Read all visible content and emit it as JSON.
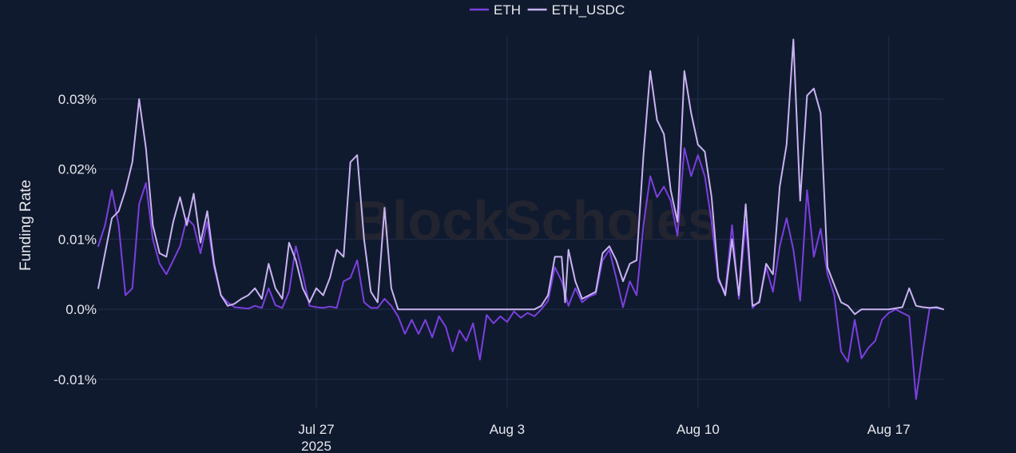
{
  "colors": {
    "background": "#101a2e",
    "grid": "#1f2d4a",
    "text": "#e6e8ee",
    "watermark": "#2a2a33",
    "eth": "#7b3fe0",
    "eth_usdc": "#c9b3f2"
  },
  "watermark": "BlockScholes",
  "chart_data": {
    "type": "line",
    "title": "",
    "xlabel": "",
    "ylabel": "Funding Rate",
    "x_range": [
      "2025-07-19",
      "2025-08-19"
    ],
    "ylim": [
      -0.014,
      0.039
    ],
    "y_ticks": [
      -0.01,
      0.0,
      0.01,
      0.02,
      0.03
    ],
    "y_tick_labels": [
      "-0.01%",
      "0.0%",
      "0.01%",
      "0.02%",
      "0.03%"
    ],
    "x_ticks": [
      "2025-07-27",
      "2025-08-03",
      "2025-08-10",
      "2025-08-17"
    ],
    "x_tick_labels": [
      "Jul 27",
      "Aug 3",
      "Aug 10",
      "Aug 17"
    ],
    "x_tick_sublabel": "2025",
    "grid": true,
    "legend_position": "top-center",
    "series": [
      {
        "name": "ETH",
        "color": "#7b3fe0",
        "points": [
          [
            "2025-07-19 00:00",
            0.009
          ],
          [
            "2025-07-19 06:00",
            0.012
          ],
          [
            "2025-07-19 12:00",
            0.017
          ],
          [
            "2025-07-19 18:00",
            0.012
          ],
          [
            "2025-07-20 00:00",
            0.002
          ],
          [
            "2025-07-20 06:00",
            0.003
          ],
          [
            "2025-07-20 12:00",
            0.015
          ],
          [
            "2025-07-20 18:00",
            0.018
          ],
          [
            "2025-07-21 00:00",
            0.01
          ],
          [
            "2025-07-21 06:00",
            0.0065
          ],
          [
            "2025-07-21 12:00",
            0.005
          ],
          [
            "2025-07-21 18:00",
            0.007
          ],
          [
            "2025-07-22 00:00",
            0.009
          ],
          [
            "2025-07-22 06:00",
            0.013
          ],
          [
            "2025-07-22 12:00",
            0.012
          ],
          [
            "2025-07-22 18:00",
            0.008
          ],
          [
            "2025-07-23 00:00",
            0.0125
          ],
          [
            "2025-07-23 06:00",
            0.006
          ],
          [
            "2025-07-23 12:00",
            0.002
          ],
          [
            "2025-07-23 18:00",
            0.001
          ],
          [
            "2025-07-24 00:00",
            0.0003
          ],
          [
            "2025-07-24 06:00",
            0.0002
          ],
          [
            "2025-07-24 12:00",
            0.0001
          ],
          [
            "2025-07-24 18:00",
            0.0005
          ],
          [
            "2025-07-25 00:00",
            0.0002
          ],
          [
            "2025-07-25 06:00",
            0.003
          ],
          [
            "2025-07-25 12:00",
            0.0006
          ],
          [
            "2025-07-25 18:00",
            0.0002
          ],
          [
            "2025-07-26 00:00",
            0.0025
          ],
          [
            "2025-07-26 06:00",
            0.009
          ],
          [
            "2025-07-26 12:00",
            0.005
          ],
          [
            "2025-07-26 18:00",
            0.0005
          ],
          [
            "2025-07-27 00:00",
            0.0003
          ],
          [
            "2025-07-27 06:00",
            0.0002
          ],
          [
            "2025-07-27 12:00",
            0.0004
          ],
          [
            "2025-07-27 18:00",
            0.0002
          ],
          [
            "2025-07-28 00:00",
            0.004
          ],
          [
            "2025-07-28 06:00",
            0.0045
          ],
          [
            "2025-07-28 12:00",
            0.007
          ],
          [
            "2025-07-28 18:00",
            0.001
          ],
          [
            "2025-07-29 00:00",
            0.0002
          ],
          [
            "2025-07-29 06:00",
            0.0002
          ],
          [
            "2025-07-29 12:00",
            0.0015
          ],
          [
            "2025-07-29 18:00",
            0.0005
          ],
          [
            "2025-07-30 00:00",
            -0.001
          ],
          [
            "2025-07-30 06:00",
            -0.0035
          ],
          [
            "2025-07-30 12:00",
            -0.0015
          ],
          [
            "2025-07-30 18:00",
            -0.0035
          ],
          [
            "2025-07-31 00:00",
            -0.0015
          ],
          [
            "2025-07-31 06:00",
            -0.004
          ],
          [
            "2025-07-31 12:00",
            -0.001
          ],
          [
            "2025-07-31 18:00",
            -0.0025
          ],
          [
            "2025-08-01 00:00",
            -0.006
          ],
          [
            "2025-08-01 06:00",
            -0.003
          ],
          [
            "2025-08-01 12:00",
            -0.0045
          ],
          [
            "2025-08-01 18:00",
            -0.002
          ],
          [
            "2025-08-02 00:00",
            -0.0072
          ],
          [
            "2025-08-02 06:00",
            -0.0008
          ],
          [
            "2025-08-02 12:00",
            -0.002
          ],
          [
            "2025-08-02 18:00",
            -0.001
          ],
          [
            "2025-08-03 00:00",
            -0.0018
          ],
          [
            "2025-08-03 06:00",
            -0.0003
          ],
          [
            "2025-08-03 12:00",
            -0.0012
          ],
          [
            "2025-08-03 18:00",
            -0.0005
          ],
          [
            "2025-08-04 00:00",
            -0.001
          ],
          [
            "2025-08-04 06:00",
            0.0
          ],
          [
            "2025-08-04 12:00",
            0.0012
          ],
          [
            "2025-08-04 18:00",
            0.006
          ],
          [
            "2025-08-05 00:00",
            0.004
          ],
          [
            "2025-08-05 06:00",
            0.0005
          ],
          [
            "2025-08-05 12:00",
            0.003
          ],
          [
            "2025-08-05 18:00",
            0.001
          ],
          [
            "2025-08-06 00:00",
            0.0018
          ],
          [
            "2025-08-06 06:00",
            0.0022
          ],
          [
            "2025-08-06 12:00",
            0.007
          ],
          [
            "2025-08-06 18:00",
            0.0085
          ],
          [
            "2025-08-07 00:00",
            0.0045
          ],
          [
            "2025-08-07 06:00",
            0.0003
          ],
          [
            "2025-08-07 12:00",
            0.004
          ],
          [
            "2025-08-07 18:00",
            0.002
          ],
          [
            "2025-08-08 00:00",
            0.012
          ],
          [
            "2025-08-08 06:00",
            0.019
          ],
          [
            "2025-08-08 12:00",
            0.016
          ],
          [
            "2025-08-08 18:00",
            0.0175
          ],
          [
            "2025-08-09 00:00",
            0.0155
          ],
          [
            "2025-08-09 06:00",
            0.0105
          ],
          [
            "2025-08-09 12:00",
            0.023
          ],
          [
            "2025-08-09 18:00",
            0.019
          ],
          [
            "2025-08-10 00:00",
            0.022
          ],
          [
            "2025-08-10 06:00",
            0.019
          ],
          [
            "2025-08-10 12:00",
            0.0125
          ],
          [
            "2025-08-10 18:00",
            0.004
          ],
          [
            "2025-08-11 00:00",
            0.0025
          ],
          [
            "2025-08-11 06:00",
            0.012
          ],
          [
            "2025-08-11 12:00",
            0.0015
          ],
          [
            "2025-08-11 18:00",
            0.0125
          ],
          [
            "2025-08-12 00:00",
            0.0002
          ],
          [
            "2025-08-12 06:00",
            0.0012
          ],
          [
            "2025-08-12 12:00",
            0.006
          ],
          [
            "2025-08-12 18:00",
            0.0025
          ],
          [
            "2025-08-13 00:00",
            0.009
          ],
          [
            "2025-08-13 06:00",
            0.013
          ],
          [
            "2025-08-13 12:00",
            0.0085
          ],
          [
            "2025-08-13 18:00",
            0.0012
          ],
          [
            "2025-08-14 00:00",
            0.017
          ],
          [
            "2025-08-14 06:00",
            0.0075
          ],
          [
            "2025-08-14 12:00",
            0.0115
          ],
          [
            "2025-08-14 18:00",
            0.005
          ],
          [
            "2025-08-15 00:00",
            0.002
          ],
          [
            "2025-08-15 06:00",
            -0.006
          ],
          [
            "2025-08-15 12:00",
            -0.0075
          ],
          [
            "2025-08-15 18:00",
            -0.0015
          ],
          [
            "2025-08-16 00:00",
            -0.007
          ],
          [
            "2025-08-16 06:00",
            -0.0055
          ],
          [
            "2025-08-16 12:00",
            -0.0045
          ],
          [
            "2025-08-16 18:00",
            -0.0015
          ],
          [
            "2025-08-17 00:00",
            -0.0005
          ],
          [
            "2025-08-17 06:00",
            0.0
          ],
          [
            "2025-08-17 12:00",
            -0.0005
          ],
          [
            "2025-08-17 18:00",
            -0.001
          ],
          [
            "2025-08-18 00:00",
            -0.0128
          ],
          [
            "2025-08-18 06:00",
            -0.006
          ],
          [
            "2025-08-18 12:00",
            0.0002
          ],
          [
            "2025-08-18 18:00",
            0.0002
          ],
          [
            "2025-08-19 00:00",
            0.0
          ]
        ]
      },
      {
        "name": "ETH_USDC",
        "color": "#c9b3f2",
        "points": [
          [
            "2025-07-19 00:00",
            0.003
          ],
          [
            "2025-07-19 06:00",
            0.008
          ],
          [
            "2025-07-19 12:00",
            0.013
          ],
          [
            "2025-07-19 18:00",
            0.014
          ],
          [
            "2025-07-20 00:00",
            0.017
          ],
          [
            "2025-07-20 06:00",
            0.021
          ],
          [
            "2025-07-20 12:00",
            0.03
          ],
          [
            "2025-07-20 18:00",
            0.023
          ],
          [
            "2025-07-21 00:00",
            0.012
          ],
          [
            "2025-07-21 06:00",
            0.008
          ],
          [
            "2025-07-21 12:00",
            0.0075
          ],
          [
            "2025-07-21 18:00",
            0.0125
          ],
          [
            "2025-07-22 00:00",
            0.016
          ],
          [
            "2025-07-22 06:00",
            0.012
          ],
          [
            "2025-07-22 12:00",
            0.0165
          ],
          [
            "2025-07-22 18:00",
            0.0095
          ],
          [
            "2025-07-23 00:00",
            0.014
          ],
          [
            "2025-07-23 06:00",
            0.0065
          ],
          [
            "2025-07-23 12:00",
            0.002
          ],
          [
            "2025-07-23 18:00",
            0.0005
          ],
          [
            "2025-07-24 00:00",
            0.0008
          ],
          [
            "2025-07-24 06:00",
            0.0015
          ],
          [
            "2025-07-24 12:00",
            0.002
          ],
          [
            "2025-07-24 18:00",
            0.003
          ],
          [
            "2025-07-25 00:00",
            0.0015
          ],
          [
            "2025-07-25 06:00",
            0.0065
          ],
          [
            "2025-07-25 12:00",
            0.003
          ],
          [
            "2025-07-25 18:00",
            0.0015
          ],
          [
            "2025-07-26 00:00",
            0.0095
          ],
          [
            "2025-07-26 06:00",
            0.007
          ],
          [
            "2025-07-26 12:00",
            0.003
          ],
          [
            "2025-07-26 18:00",
            0.001
          ],
          [
            "2025-07-27 00:00",
            0.003
          ],
          [
            "2025-07-27 06:00",
            0.002
          ],
          [
            "2025-07-27 12:00",
            0.0045
          ],
          [
            "2025-07-27 18:00",
            0.0085
          ],
          [
            "2025-07-28 00:00",
            0.0075
          ],
          [
            "2025-07-28 06:00",
            0.021
          ],
          [
            "2025-07-28 12:00",
            0.022
          ],
          [
            "2025-07-28 18:00",
            0.01
          ],
          [
            "2025-07-29 00:00",
            0.0025
          ],
          [
            "2025-07-29 06:00",
            0.001
          ],
          [
            "2025-07-29 12:00",
            0.0145
          ],
          [
            "2025-07-29 18:00",
            0.003
          ],
          [
            "2025-07-30 00:00",
            0.0
          ],
          [
            "2025-07-30 12:00",
            0.0
          ],
          [
            "2025-07-31 00:00",
            0.0
          ],
          [
            "2025-07-31 12:00",
            0.0
          ],
          [
            "2025-08-01 00:00",
            0.0
          ],
          [
            "2025-08-01 12:00",
            0.0
          ],
          [
            "2025-08-02 00:00",
            0.0
          ],
          [
            "2025-08-02 12:00",
            0.0
          ],
          [
            "2025-08-03 00:00",
            0.0
          ],
          [
            "2025-08-03 12:00",
            0.0
          ],
          [
            "2025-08-04 00:00",
            0.0
          ],
          [
            "2025-08-04 06:00",
            0.0005
          ],
          [
            "2025-08-04 12:00",
            0.002
          ],
          [
            "2025-08-04 18:00",
            0.0075
          ],
          [
            "2025-08-05 00:00",
            0.0075
          ],
          [
            "2025-08-05 03:00",
            0.001
          ],
          [
            "2025-08-05 06:00",
            0.0085
          ],
          [
            "2025-08-05 12:00",
            0.004
          ],
          [
            "2025-08-05 18:00",
            0.0015
          ],
          [
            "2025-08-06 00:00",
            0.002
          ],
          [
            "2025-08-06 06:00",
            0.0025
          ],
          [
            "2025-08-06 12:00",
            0.008
          ],
          [
            "2025-08-06 18:00",
            0.009
          ],
          [
            "2025-08-07 00:00",
            0.007
          ],
          [
            "2025-08-07 06:00",
            0.004
          ],
          [
            "2025-08-07 12:00",
            0.0065
          ],
          [
            "2025-08-07 18:00",
            0.007
          ],
          [
            "2025-08-08 00:00",
            0.022
          ],
          [
            "2025-08-08 06:00",
            0.034
          ],
          [
            "2025-08-08 12:00",
            0.027
          ],
          [
            "2025-08-08 18:00",
            0.025
          ],
          [
            "2025-08-09 00:00",
            0.017
          ],
          [
            "2025-08-09 06:00",
            0.0125
          ],
          [
            "2025-08-09 12:00",
            0.034
          ],
          [
            "2025-08-09 18:00",
            0.028
          ],
          [
            "2025-08-10 00:00",
            0.0235
          ],
          [
            "2025-08-10 06:00",
            0.0225
          ],
          [
            "2025-08-10 12:00",
            0.016
          ],
          [
            "2025-08-10 18:00",
            0.0045
          ],
          [
            "2025-08-11 00:00",
            0.002
          ],
          [
            "2025-08-11 06:00",
            0.01
          ],
          [
            "2025-08-11 12:00",
            0.002
          ],
          [
            "2025-08-11 18:00",
            0.015
          ],
          [
            "2025-08-12 00:00",
            0.0005
          ],
          [
            "2025-08-12 06:00",
            0.001
          ],
          [
            "2025-08-12 12:00",
            0.0065
          ],
          [
            "2025-08-12 18:00",
            0.005
          ],
          [
            "2025-08-13 00:00",
            0.0175
          ],
          [
            "2025-08-13 06:00",
            0.0235
          ],
          [
            "2025-08-13 12:00",
            0.0385
          ],
          [
            "2025-08-13 18:00",
            0.0155
          ],
          [
            "2025-08-14 00:00",
            0.0305
          ],
          [
            "2025-08-14 06:00",
            0.0315
          ],
          [
            "2025-08-14 12:00",
            0.028
          ],
          [
            "2025-08-14 18:00",
            0.006
          ],
          [
            "2025-08-15 00:00",
            0.0035
          ],
          [
            "2025-08-15 06:00",
            0.001
          ],
          [
            "2025-08-15 12:00",
            0.0005
          ],
          [
            "2025-08-15 18:00",
            -0.0007
          ],
          [
            "2025-08-16 00:00",
            0.0
          ],
          [
            "2025-08-16 12:00",
            0.0
          ],
          [
            "2025-08-17 00:00",
            0.0
          ],
          [
            "2025-08-17 12:00",
            0.0003
          ],
          [
            "2025-08-17 18:00",
            0.003
          ],
          [
            "2025-08-18 00:00",
            0.0005
          ],
          [
            "2025-08-18 06:00",
            0.0003
          ],
          [
            "2025-08-18 12:00",
            0.0002
          ],
          [
            "2025-08-18 18:00",
            0.0003
          ],
          [
            "2025-08-19 00:00",
            0.0
          ]
        ]
      }
    ]
  }
}
